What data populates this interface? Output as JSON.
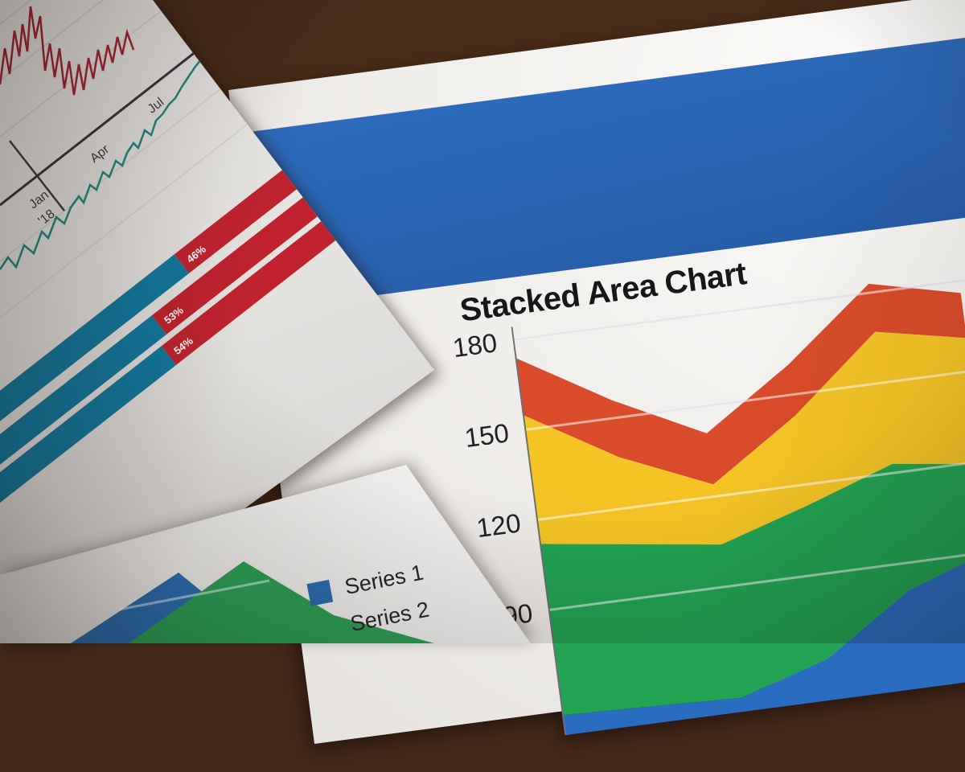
{
  "scene": {
    "description_colors": {
      "wood": "#4a2c18",
      "paper_white": "#f2f0ed",
      "header_band_blue": "#2a63b0"
    }
  },
  "papers": {
    "top_left": {
      "line_chart": {
        "jan_label": "Jan",
        "year_label": "'18",
        "apr_label": "Apr",
        "jul_label": "Jul"
      }
    },
    "right": {
      "title": "Stacked Area Chart"
    },
    "bottom_left": {}
  },
  "chart_data": [
    {
      "type": "area",
      "stacked": true,
      "title": "Stacked Area Chart",
      "y_ticks": [
        "180",
        "150",
        "120",
        "90"
      ],
      "y_visible_range": [
        60,
        186
      ],
      "x_labels_visible": false,
      "x_count": 6,
      "legend_position": "none-visible",
      "grid": true,
      "gridline_color_on_paper": "#b9c4d2",
      "gridline_color_on_fill": "rgba(255,255,255,0.55)",
      "series": [
        {
          "name": "blue-bottom-band",
          "color": "#2a6cc0",
          "values": [
            55,
            54,
            53,
            62,
            81,
            91
          ]
        },
        {
          "name": "green-band",
          "color": "#21a351",
          "values": [
            57,
            54,
            51,
            51,
            42,
            28
          ]
        },
        {
          "name": "yellow-band",
          "color": "#f5c526",
          "values": [
            43,
            29,
            20,
            30,
            44,
            42
          ]
        },
        {
          "name": "red-top-band",
          "color": "#d94b2a",
          "values": [
            19,
            19,
            17,
            17,
            16,
            15
          ]
        }
      ]
    },
    {
      "type": "bar",
      "orientation": "horizontal",
      "stacked": true,
      "segment_colors": {
        "teal": "#13799e",
        "red": "#c0232e"
      },
      "label_color": "#ffffff",
      "bars": [
        {
          "label": "46%"
        },
        {
          "label": "53%"
        },
        {
          "label": "54%"
        }
      ]
    },
    {
      "type": "line",
      "x_labels": [
        "Jan '18",
        "Apr",
        "Jul"
      ],
      "series": [
        {
          "name": "red-jagged-line",
          "color": "#a8242f"
        },
        {
          "name": "teal-line",
          "color": "#1d8a80"
        }
      ],
      "axis_color": "#35353b",
      "grid": true
    },
    {
      "type": "area",
      "legend": [
        "Series 1",
        "Series 2"
      ],
      "legend_colors": [
        "#2a6daf",
        "#2c9e54"
      ],
      "series": [
        {
          "name": "Series 1",
          "color": "#2a6daf"
        },
        {
          "name": "Series 2",
          "color": "#2c9e54"
        }
      ]
    }
  ]
}
